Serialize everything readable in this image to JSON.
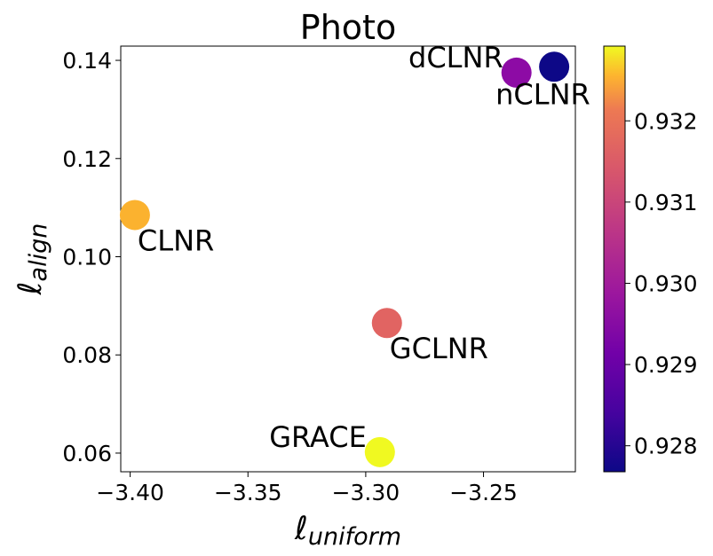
{
  "chart_data": {
    "type": "scatter",
    "title": "Photo",
    "xlabel": "ℓ",
    "xlabel_sub": "uniform",
    "ylabel": "ℓ",
    "ylabel_sub": "align",
    "xlim": [
      -3.404,
      -3.211
    ],
    "ylim": [
      0.0562,
      0.1429
    ],
    "xticks": [
      -3.4,
      -3.35,
      -3.3,
      -3.25
    ],
    "xtick_labels": [
      "−3.40",
      "−3.35",
      "−3.30",
      "−3.25"
    ],
    "yticks": [
      0.06,
      0.08,
      0.1,
      0.12,
      0.14
    ],
    "ytick_labels": [
      "0.06",
      "0.08",
      "0.10",
      "0.12",
      "0.14"
    ],
    "grid": false,
    "colormap": "plasma",
    "colorbar": {
      "range": [
        0.92768,
        0.93292
      ],
      "ticks": [
        0.928,
        0.929,
        0.93,
        0.931,
        0.932
      ],
      "tick_labels": [
        "0.928",
        "0.929",
        "0.930",
        "0.931",
        "0.932"
      ]
    },
    "points": [
      {
        "label": "dCLNR",
        "x": -3.236,
        "y": 0.1375,
        "value": 0.9292,
        "color": "#8d0ba5",
        "label_pos": "left"
      },
      {
        "label": "nCLNR",
        "x": -3.22,
        "y": 0.1387,
        "value": 0.9277,
        "color": "#0d0887",
        "label_pos": "below-left"
      },
      {
        "label": "CLNR",
        "x": -3.398,
        "y": 0.1085,
        "value": 0.9322,
        "color": "#fbb22f",
        "label_pos": "below-right"
      },
      {
        "label": "GCLNR",
        "x": -3.291,
        "y": 0.0865,
        "value": 0.9308,
        "color": "#e16462",
        "label_pos": "below-right"
      },
      {
        "label": "GRACE",
        "x": -3.294,
        "y": 0.0602,
        "value": 0.9329,
        "color": "#f0f921",
        "label_pos": "left"
      }
    ]
  }
}
